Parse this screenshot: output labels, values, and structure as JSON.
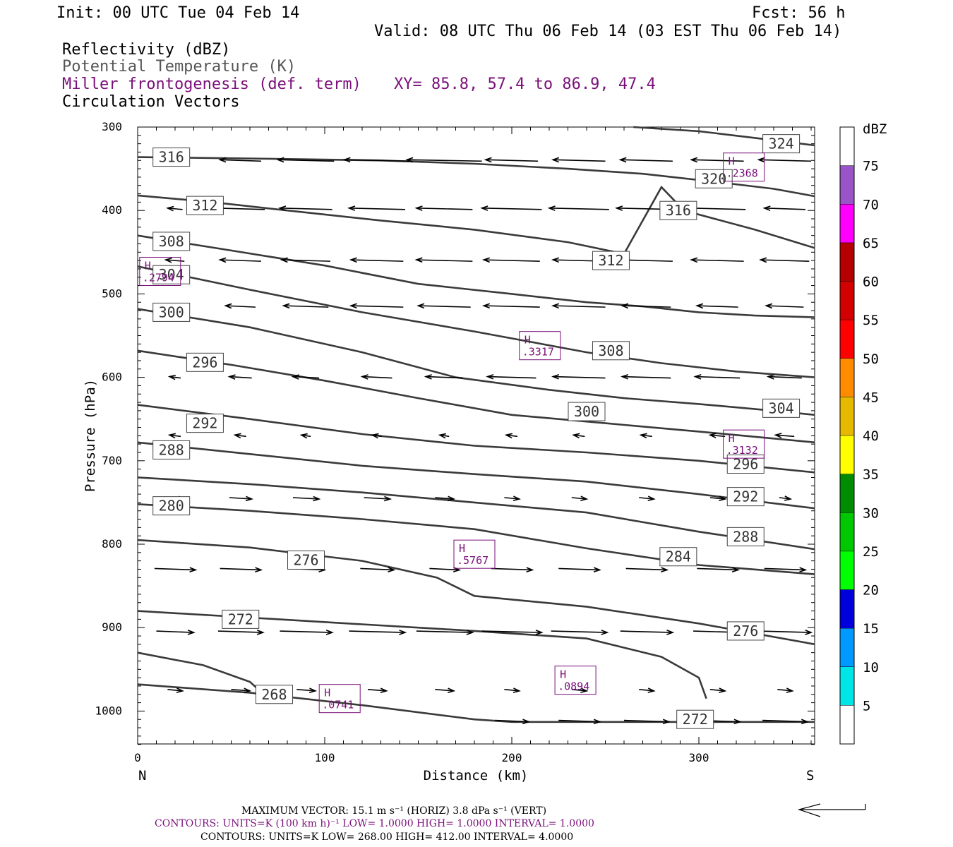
{
  "header": {
    "init": "Init: 00 UTC Tue 04 Feb 14",
    "fcst": "Fcst:   56 h",
    "valid": "Valid: 08 UTC Thu 06 Feb 14 (03 EST Thu 06 Feb 14)",
    "field1": "Reflectivity (dBZ)",
    "field2": "Potential Temperature (K)",
    "field3": "Miller frontogenesis (def. term)",
    "xy": "XY=  85.8, 57.4 to  86.9, 47.4",
    "field4": "Circulation Vectors"
  },
  "colors": {
    "theta": "#3a3a3a",
    "fronto": "#7a0f7a",
    "vectors": "#000000"
  },
  "chart_data": {
    "type": "line",
    "xlabel": "Distance (km)",
    "ylabel": "Pressure (hPa)",
    "xlim": [
      0,
      362
    ],
    "ylim": [
      1040,
      300
    ],
    "xticks": [
      0,
      100,
      200,
      300
    ],
    "yticks": [
      300,
      400,
      500,
      600,
      700,
      800,
      900,
      1000
    ],
    "left_end": "N",
    "right_end": "S",
    "theta_contours": [
      {
        "value": 324,
        "points": [
          [
            265,
            300
          ],
          [
            300,
            305
          ],
          [
            330,
            313
          ],
          [
            362,
            322
          ]
        ]
      },
      {
        "value": 320,
        "points": [
          [
            0,
            336
          ],
          [
            70,
            338
          ],
          [
            130,
            340
          ],
          [
            180,
            344
          ],
          [
            230,
            350
          ],
          [
            270,
            356
          ],
          [
            310,
            366
          ],
          [
            340,
            374
          ],
          [
            362,
            383
          ]
        ]
      },
      {
        "value": 316,
        "points": [
          [
            0,
            382
          ],
          [
            40,
            390
          ],
          [
            80,
            400
          ],
          [
            130,
            412
          ],
          [
            180,
            423
          ],
          [
            230,
            438
          ],
          [
            260,
            452
          ],
          [
            280,
            372
          ],
          [
            292,
            400
          ],
          [
            330,
            423
          ],
          [
            362,
            445
          ]
        ]
      },
      {
        "value": 312,
        "points": [
          [
            0,
            430
          ],
          [
            50,
            448
          ],
          [
            100,
            466
          ],
          [
            150,
            488
          ],
          [
            200,
            500
          ],
          [
            240,
            510
          ],
          [
            270,
            515
          ],
          [
            300,
            522
          ],
          [
            330,
            526
          ],
          [
            362,
            528
          ]
        ]
      },
      {
        "value": 308,
        "points": [
          [
            0,
            467
          ],
          [
            60,
            495
          ],
          [
            120,
            522
          ],
          [
            180,
            545
          ],
          [
            240,
            570
          ],
          [
            280,
            583
          ],
          [
            320,
            593
          ],
          [
            362,
            600
          ]
        ]
      },
      {
        "value": 304,
        "points": [
          [
            0,
            518
          ],
          [
            60,
            540
          ],
          [
            120,
            570
          ],
          [
            170,
            600
          ],
          [
            220,
            615
          ],
          [
            260,
            625
          ],
          [
            300,
            632
          ],
          [
            340,
            640
          ],
          [
            362,
            645
          ]
        ]
      },
      {
        "value": 300,
        "points": [
          [
            0,
            568
          ],
          [
            50,
            585
          ],
          [
            100,
            604
          ],
          [
            150,
            625
          ],
          [
            200,
            645
          ],
          [
            250,
            655
          ],
          [
            300,
            665
          ],
          [
            362,
            678
          ]
        ]
      },
      {
        "value": 296,
        "points": [
          [
            0,
            633
          ],
          [
            60,
            650
          ],
          [
            120,
            668
          ],
          [
            180,
            682
          ],
          [
            240,
            690
          ],
          [
            300,
            700
          ],
          [
            362,
            714
          ]
        ]
      },
      {
        "value": 292,
        "points": [
          [
            0,
            678
          ],
          [
            60,
            692
          ],
          [
            120,
            706
          ],
          [
            180,
            716
          ],
          [
            240,
            725
          ],
          [
            300,
            740
          ],
          [
            362,
            757
          ]
        ]
      },
      {
        "value": 288,
        "points": [
          [
            0,
            720
          ],
          [
            60,
            728
          ],
          [
            120,
            738
          ],
          [
            180,
            750
          ],
          [
            240,
            762
          ],
          [
            300,
            785
          ],
          [
            362,
            806
          ]
        ]
      },
      {
        "value": 284,
        "points": [
          [
            0,
            752
          ],
          [
            60,
            760
          ],
          [
            120,
            770
          ],
          [
            180,
            782
          ],
          [
            240,
            805
          ],
          [
            300,
            825
          ],
          [
            362,
            836
          ]
        ]
      },
      {
        "value": 280,
        "points": [
          [
            0,
            795
          ],
          [
            60,
            804
          ],
          [
            120,
            820
          ],
          [
            160,
            840
          ],
          [
            180,
            862
          ],
          [
            240,
            875
          ],
          [
            300,
            895
          ],
          [
            362,
            920
          ]
        ]
      },
      {
        "value": 276,
        "points": [
          [
            0,
            880
          ],
          [
            60,
            888
          ],
          [
            120,
            896
          ],
          [
            180,
            904
          ],
          [
            240,
            913
          ],
          [
            280,
            935
          ],
          [
            300,
            960
          ],
          [
            304,
            985
          ]
        ]
      },
      {
        "value": 272,
        "points": [
          [
            0,
            930
          ],
          [
            35,
            945
          ],
          [
            60,
            965
          ],
          [
            70,
            985
          ]
        ]
      },
      {
        "value": 268,
        "points": [
          [
            0,
            968
          ],
          [
            60,
            978
          ],
          [
            120,
            993
          ],
          [
            180,
            1010
          ],
          [
            200,
            1013
          ],
          [
            362,
            1013
          ]
        ]
      }
    ],
    "theta_labels": [
      {
        "text": "324",
        "x": 344,
        "p": 320
      },
      {
        "text": "320",
        "x": 308,
        "p": 362
      },
      {
        "text": "316",
        "x": 18,
        "p": 336
      },
      {
        "text": "316",
        "x": 289,
        "p": 400
      },
      {
        "text": "312",
        "x": 36,
        "p": 394
      },
      {
        "text": "312",
        "x": 253,
        "p": 460
      },
      {
        "text": "308",
        "x": 18,
        "p": 437
      },
      {
        "text": "308",
        "x": 253,
        "p": 568
      },
      {
        "text": "304",
        "x": 18,
        "p": 477
      },
      {
        "text": "304",
        "x": 344,
        "p": 637
      },
      {
        "text": "300",
        "x": 18,
        "p": 522
      },
      {
        "text": "300",
        "x": 240,
        "p": 641
      },
      {
        "text": "296",
        "x": 36,
        "p": 582
      },
      {
        "text": "296",
        "x": 325,
        "p": 704
      },
      {
        "text": "292",
        "x": 36,
        "p": 655
      },
      {
        "text": "292",
        "x": 325,
        "p": 743
      },
      {
        "text": "288",
        "x": 18,
        "p": 687
      },
      {
        "text": "288",
        "x": 325,
        "p": 791
      },
      {
        "text": "284",
        "x": 289,
        "p": 815
      },
      {
        "text": "280",
        "x": 18,
        "p": 754
      },
      {
        "text": "276",
        "x": 90,
        "p": 819
      },
      {
        "text": "276",
        "x": 325,
        "p": 904
      },
      {
        "text": "272",
        "x": 55,
        "p": 890
      },
      {
        "text": "272",
        "x": 298,
        "p": 1010
      },
      {
        "text": "268",
        "x": 73,
        "p": 980
      }
    ],
    "fronto_maxima": [
      {
        "label": "H",
        "value": ".2368",
        "x": 324,
        "p": 348
      },
      {
        "label": "H",
        "value": ".2794",
        "x": 12,
        "p": 473
      },
      {
        "label": "H",
        "value": ".3317",
        "x": 215,
        "p": 562
      },
      {
        "label": "H",
        "value": ".3132",
        "x": 324,
        "p": 680
      },
      {
        "label": "H",
        "value": ".5767",
        "x": 180,
        "p": 812
      },
      {
        "label": "H",
        "value": ".0894",
        "x": 234,
        "p": 963
      },
      {
        "label": "H",
        "value": ".0741",
        "x": 108,
        "p": 985
      }
    ],
    "vector_levels_westward": [
      {
        "p": 340,
        "lengths": [
          0,
          22,
          30,
          35,
          40,
          28,
          28,
          28,
          28,
          28
        ]
      },
      {
        "p": 398,
        "lengths": [
          8,
          26,
          28,
          30,
          30,
          32,
          32,
          32,
          30,
          22
        ]
      },
      {
        "p": 460,
        "lengths": [
          10,
          22,
          26,
          28,
          30,
          30,
          28,
          28,
          28,
          26
        ]
      },
      {
        "p": 515,
        "lengths": [
          8,
          16,
          24,
          28,
          28,
          30,
          28,
          26,
          22,
          20
        ]
      },
      {
        "p": 600,
        "lengths": [
          6,
          12,
          14,
          16,
          20,
          26,
          28,
          26,
          24,
          18
        ]
      },
      {
        "p": 670,
        "lengths": [
          6,
          6,
          5,
          5,
          5,
          6,
          6,
          6,
          8,
          10
        ]
      }
    ],
    "vector_levels_eastward": [
      {
        "p": 745,
        "lengths": [
          10,
          12,
          14,
          14,
          10,
          8,
          8,
          8,
          8,
          6
        ]
      },
      {
        "p": 830,
        "lengths": [
          22,
          22,
          20,
          18,
          16,
          22,
          22,
          22,
          22,
          22
        ]
      },
      {
        "p": 905,
        "lengths": [
          20,
          24,
          28,
          30,
          30,
          32,
          30,
          28,
          26,
          28
        ]
      },
      {
        "p": 975,
        "lengths": [
          8,
          10,
          10,
          10,
          10,
          8,
          8,
          8,
          8,
          8
        ]
      },
      {
        "p": 1012,
        "lengths": [
          0,
          0,
          0,
          0,
          0,
          18,
          22,
          24,
          24,
          24
        ]
      }
    ]
  },
  "colorbar": {
    "unit": "dBZ",
    "levels": [
      "5",
      "10",
      "15",
      "20",
      "25",
      "30",
      "35",
      "40",
      "45",
      "50",
      "55",
      "60",
      "65",
      "70",
      "75"
    ],
    "colors": [
      "#ffffff",
      "#00e5e5",
      "#0099ff",
      "#0000dd",
      "#00ff00",
      "#00c800",
      "#008c00",
      "#ffff00",
      "#e6b800",
      "#ff8c00",
      "#ff0000",
      "#d20000",
      "#b40000",
      "#ff00ff",
      "#9955c8",
      "#ffffff"
    ]
  },
  "footer": {
    "max_vector": "MAXIMUM VECTOR:  15.1 m s⁻¹ (HORIZ)          3.8 dPa s⁻¹ (VERT)",
    "contours1": "CONTOURS:  UNITS=K (100 km h)⁻¹  LOW=   1.0000       HIGH=  1.0000       INTERVAL=    1.0000",
    "contours2": "CONTOURS:  UNITS=K  LOW=   268.00        HIGH=  412.00        INTERVAL=    4.0000"
  }
}
